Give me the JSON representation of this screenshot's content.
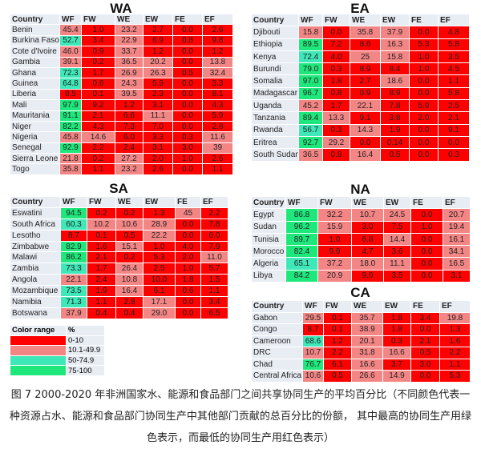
{
  "colors": {
    "red": "#ff0000",
    "pink": "#f48585",
    "teal": "#3ee8b8",
    "green": "#1ee87c"
  },
  "columns": [
    "Country",
    "WF",
    "FW",
    "WE",
    "EW",
    "FE",
    "EF"
  ],
  "chart_data": [
    {
      "type": "heatmap",
      "title": "WA",
      "rows": [
        [
          "Benin",
          "45.4",
          "1.0",
          "23.2",
          "2.7",
          "0.0",
          "2.6"
        ],
        [
          "Burkina Faso",
          "52.7",
          "3.4",
          "22.9",
          "6.9",
          "0.8",
          "9.8"
        ],
        [
          "Cote d'Ivoire",
          "46.0",
          "0.9",
          "33.7",
          "1.2",
          "0.0",
          "1.2"
        ],
        [
          "Gambia",
          "39.1",
          "0.2",
          "36.5",
          "20.2",
          "0.0",
          "13.8"
        ],
        [
          "Ghana",
          "72.3",
          "1.7",
          "26.9",
          "26.3",
          "0.5",
          "32.4"
        ],
        [
          "Guinea",
          "64.8",
          "0.6",
          "24.3",
          "5.9",
          "0.0",
          "3.3"
        ],
        [
          "Liberia",
          "8.5",
          "0.1",
          "39.5",
          "2.3",
          "0.0",
          "8.1"
        ],
        [
          "Mali",
          "97.9",
          "9.2",
          "1.2",
          "3.1",
          "0.0",
          "4.3"
        ],
        [
          "Mauritania",
          "91.1",
          "2.1",
          "6.6",
          "11.1",
          "0.0",
          "5.9"
        ],
        [
          "Niger",
          "82.2",
          "4.3",
          "7.3",
          "7.0",
          "0.0",
          "2.8"
        ],
        [
          "Nigeria",
          "45.8",
          "14.6",
          "6.0",
          "3.3",
          "0.3",
          "11.6"
        ],
        [
          "Senegal",
          "92.9",
          "2.2",
          "2.4",
          "3.1",
          "3.0",
          "39"
        ],
        [
          "Sierra Leone",
          "21.8",
          "0.2",
          "27.2",
          "2.0",
          "1.0",
          "2.6"
        ],
        [
          "Togo",
          "35.8",
          "1.1",
          "23.2",
          "2.6",
          "0.0",
          "1.1"
        ]
      ]
    },
    {
      "type": "heatmap",
      "title": "EA",
      "rows": [
        [
          "Djibouti",
          "15.8",
          "0.0",
          "35.8",
          "37.9",
          "0.0",
          "4.8"
        ],
        [
          "Ethiopia",
          "89.5",
          "7.2",
          "8.6",
          "16.3",
          "5.3",
          "5.8"
        ],
        [
          "Kenya",
          "72.4",
          "4.0",
          "25",
          "15.8",
          "1.0",
          "3.5"
        ],
        [
          "Burundi",
          "79.0",
          "0.3",
          "8.9",
          "8.4",
          "1.0",
          "4.5"
        ],
        [
          "Somalia",
          "97.0",
          "1.8",
          "2.7",
          "18.6",
          "0.0",
          "1.1"
        ],
        [
          "Madagascar",
          "96.7",
          "0.8",
          "0.9",
          "8.9",
          "0.0",
          "5.8"
        ],
        [
          "Uganda",
          "45.2",
          "1.7",
          "22.1",
          "7.8",
          "5.9",
          "2.5"
        ],
        [
          "Tanzania",
          "89.4",
          "13.3",
          "9.1",
          "3.8",
          "2.0",
          "2.1"
        ],
        [
          "Rwanda",
          "56.7",
          "0.3",
          "14.3",
          "1.9",
          "0.0",
          "9.1"
        ],
        [
          "Eritrea",
          "92.7",
          "29.2",
          "0.0",
          "0.14",
          "0.0",
          "0.0"
        ],
        [
          "South Sudan",
          "36.5",
          "0.8",
          "16.4",
          "0.5",
          "0.0",
          "0.3"
        ]
      ]
    },
    {
      "type": "heatmap",
      "title": "SA",
      "rows": [
        [
          "Eswatini",
          "94.5",
          "0.2",
          "0.2",
          "1.3",
          "45",
          "2.2"
        ],
        [
          "South Africa",
          "60.3",
          "10.2",
          "10.6",
          "28.9",
          "0.0",
          "7.8"
        ],
        [
          "Lesotho",
          "8.7",
          "0.1",
          "0.5",
          "22.2",
          "0.0",
          "6.0"
        ],
        [
          "Zimbabwe",
          "82.9",
          "1.6",
          "15.1",
          "1.0",
          "4.0",
          "7.9"
        ],
        [
          "Malawi",
          "86.2",
          "2.1",
          "0.2",
          "5.3",
          "2.0",
          "11.0"
        ],
        [
          "Zambia",
          "73.3",
          "1.7",
          "26.4",
          "2.5",
          "1.0",
          "5.7"
        ],
        [
          "Angola",
          "22.1",
          "2.4",
          "10.8",
          "10.0",
          "1.8",
          "1.5"
        ],
        [
          "Mozambique",
          "73.5",
          "1.9",
          "16.4",
          "6.1",
          "0.6",
          "1.1"
        ],
        [
          "Namibia",
          "71.3",
          "1.1",
          "2.8",
          "17.1",
          "0.0",
          "3.4"
        ],
        [
          "Botswana",
          "37.9",
          "0.4",
          "0.4",
          "29.0",
          "0.0",
          "6.5"
        ]
      ]
    },
    {
      "type": "heatmap",
      "title": "NA",
      "rows": [
        [
          "Egypt",
          "86.8",
          "32.2",
          "10.7",
          "24.5",
          "0.0",
          "20.7"
        ],
        [
          "Sudan",
          "96.2",
          "15.9",
          "3.0",
          "7.5",
          "1.0",
          "19.4"
        ],
        [
          "Tunisia",
          "89.7",
          "1.0",
          "6.8",
          "14.4",
          "0.0",
          "16.1"
        ],
        [
          "Morocco",
          "82.4",
          "9.9",
          "4.7",
          "3.6",
          "0.0",
          "34.1"
        ],
        [
          "Algeria",
          "65.1",
          "37.2",
          "18.0",
          "11.1",
          "0.0",
          "16.5"
        ],
        [
          "Libya",
          "84.2",
          "20.9",
          "9.9",
          "3.5",
          "0.0",
          "3.1"
        ]
      ]
    },
    {
      "type": "heatmap",
      "title": "CA",
      "rows": [
        [
          "Gabon",
          "29.5",
          "0.1",
          "35.7",
          "1.8",
          "3.4",
          "19.8"
        ],
        [
          "Congo",
          "8.7",
          "0.1",
          "38.9",
          "1.8",
          "0.0",
          "1.3"
        ],
        [
          "Cameroon",
          "68.6",
          "1.2",
          "20.1",
          "0.3",
          "2.1",
          "1.6"
        ],
        [
          "DRC",
          "10.7",
          "2.2",
          "31.8",
          "16.6",
          "0.5",
          "2.2"
        ],
        [
          "Chad",
          "76.7",
          "6.1",
          "16.6",
          "3.7",
          "3.0",
          "1.1"
        ],
        [
          "Central Africa",
          "10.6",
          "0.5",
          "26.6",
          "14.9",
          "0.0",
          "5.3"
        ]
      ]
    }
  ],
  "legend": {
    "header": [
      "Color range",
      "%"
    ],
    "items": [
      {
        "range": "0-10",
        "color": "#ff0000"
      },
      {
        "range": "10.1-49.9",
        "color": "#f48585"
      },
      {
        "range": "50-74.9",
        "color": "#3ee8b8"
      },
      {
        "range": "75-100",
        "color": "#1ee87c"
      }
    ]
  },
  "caption": "图 7 2000-2020 年非洲国家水、能源和食品部门之间共享协同生产的平均百分比（不同颜色代表一种资源占水、能源和食品部门协同生产中其他部门贡献的总百分比的份额， 其中最高的协同生产用绿色表示，而最低的协同生产用红色表示）"
}
